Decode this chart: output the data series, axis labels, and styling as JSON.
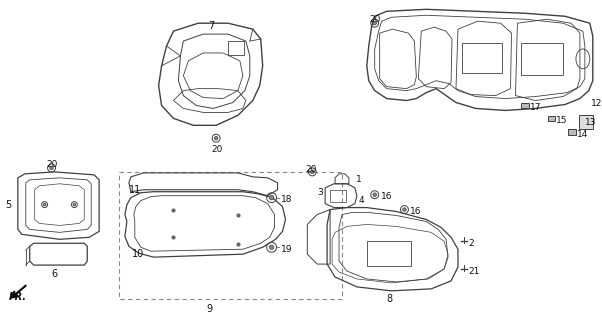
{
  "background_color": "#ffffff",
  "line_color": "#404040",
  "text_color": "#111111",
  "fig_width": 6.02,
  "fig_height": 3.2,
  "dpi": 100
}
